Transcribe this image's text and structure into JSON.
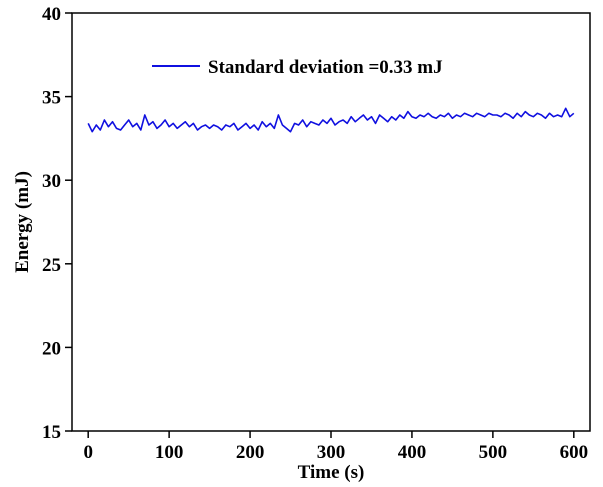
{
  "chart_data": {
    "type": "line",
    "title": "",
    "xlabel": "Time (s)",
    "ylabel": "Energy (mJ)",
    "xlim": [
      -20,
      620
    ],
    "ylim": [
      15,
      40
    ],
    "xticks": [
      0,
      100,
      200,
      300,
      400,
      500,
      600
    ],
    "yticks": [
      15,
      20,
      25,
      30,
      35,
      40
    ],
    "grid": false,
    "legend_position": "top-center",
    "series": [
      {
        "name": "Standard deviation =0.33 mJ",
        "color": "#1010e0",
        "x": [
          0,
          5,
          10,
          15,
          20,
          25,
          30,
          35,
          40,
          45,
          50,
          55,
          60,
          65,
          70,
          75,
          80,
          85,
          90,
          95,
          100,
          105,
          110,
          115,
          120,
          125,
          130,
          135,
          140,
          145,
          150,
          155,
          160,
          165,
          170,
          175,
          180,
          185,
          190,
          195,
          200,
          205,
          210,
          215,
          220,
          225,
          230,
          235,
          240,
          245,
          250,
          255,
          260,
          265,
          270,
          275,
          280,
          285,
          290,
          295,
          300,
          305,
          310,
          315,
          320,
          325,
          330,
          335,
          340,
          345,
          350,
          355,
          360,
          365,
          370,
          375,
          380,
          385,
          390,
          395,
          400,
          405,
          410,
          415,
          420,
          425,
          430,
          435,
          440,
          445,
          450,
          455,
          460,
          465,
          470,
          475,
          480,
          485,
          490,
          495,
          500,
          505,
          510,
          515,
          520,
          525,
          530,
          535,
          540,
          545,
          550,
          555,
          560,
          565,
          570,
          575,
          580,
          585,
          590,
          595,
          600
        ],
        "y": [
          33.4,
          32.9,
          33.3,
          33.0,
          33.6,
          33.2,
          33.5,
          33.1,
          33.0,
          33.3,
          33.6,
          33.2,
          33.4,
          33.0,
          33.9,
          33.3,
          33.5,
          33.1,
          33.3,
          33.6,
          33.2,
          33.4,
          33.1,
          33.3,
          33.5,
          33.2,
          33.4,
          33.0,
          33.2,
          33.3,
          33.1,
          33.3,
          33.2,
          33.0,
          33.3,
          33.2,
          33.4,
          33.0,
          33.2,
          33.4,
          33.1,
          33.3,
          33.0,
          33.5,
          33.2,
          33.4,
          33.1,
          33.9,
          33.3,
          33.1,
          32.9,
          33.4,
          33.3,
          33.6,
          33.2,
          33.5,
          33.4,
          33.3,
          33.6,
          33.4,
          33.7,
          33.3,
          33.5,
          33.6,
          33.4,
          33.8,
          33.5,
          33.7,
          33.9,
          33.6,
          33.8,
          33.4,
          33.9,
          33.7,
          33.5,
          33.8,
          33.6,
          33.9,
          33.7,
          34.1,
          33.8,
          33.7,
          33.9,
          33.8,
          34.0,
          33.8,
          33.7,
          33.9,
          33.8,
          34.0,
          33.7,
          33.9,
          33.8,
          34.0,
          33.9,
          33.8,
          34.0,
          33.9,
          33.8,
          34.0,
          33.9,
          33.9,
          33.8,
          34.0,
          33.9,
          33.7,
          34.0,
          33.8,
          34.1,
          33.9,
          33.8,
          34.0,
          33.9,
          33.7,
          34.0,
          33.8,
          33.9,
          33.8,
          34.3,
          33.8,
          34.0
        ]
      }
    ]
  }
}
